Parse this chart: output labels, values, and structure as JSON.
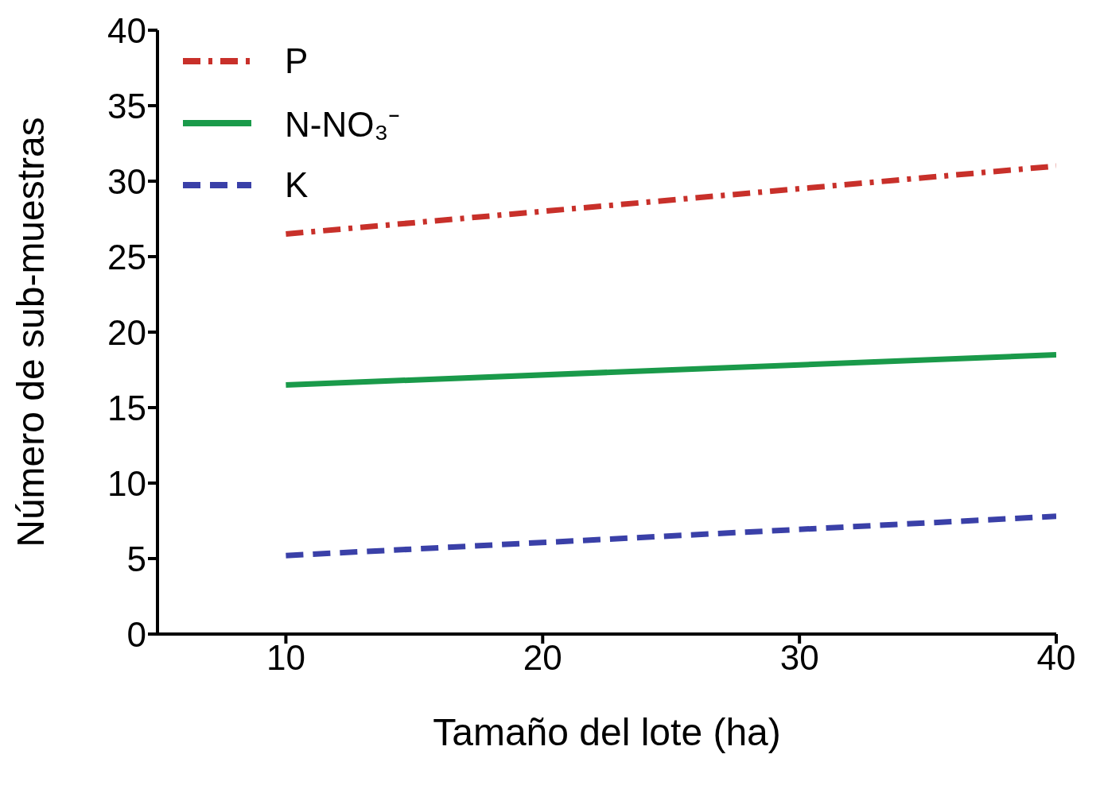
{
  "chart_data": {
    "type": "line",
    "xlabel": "Tamaño del lote (ha)",
    "ylabel": "Número de sub-muestras",
    "x": [
      10,
      40
    ],
    "xlim": [
      5,
      40
    ],
    "xticks": [
      10,
      20,
      30,
      40
    ],
    "ylim": [
      0,
      40
    ],
    "yticks": [
      0,
      5,
      10,
      15,
      20,
      25,
      30,
      35,
      40
    ],
    "grid": false,
    "legend": "top left",
    "marker": "none",
    "series": [
      {
        "name": "P",
        "color": "#c8302a",
        "values": [
          26.5,
          31
        ],
        "line_style": "dashdot"
      },
      {
        "name": "N-NO₃⁻",
        "color": "#1a9a4a",
        "values": [
          16.5,
          18.5
        ],
        "line_style": "solid"
      },
      {
        "name": "K",
        "color": "#3a40a8",
        "values": [
          5.2,
          7.8
        ],
        "line_style": "dashed"
      }
    ]
  }
}
